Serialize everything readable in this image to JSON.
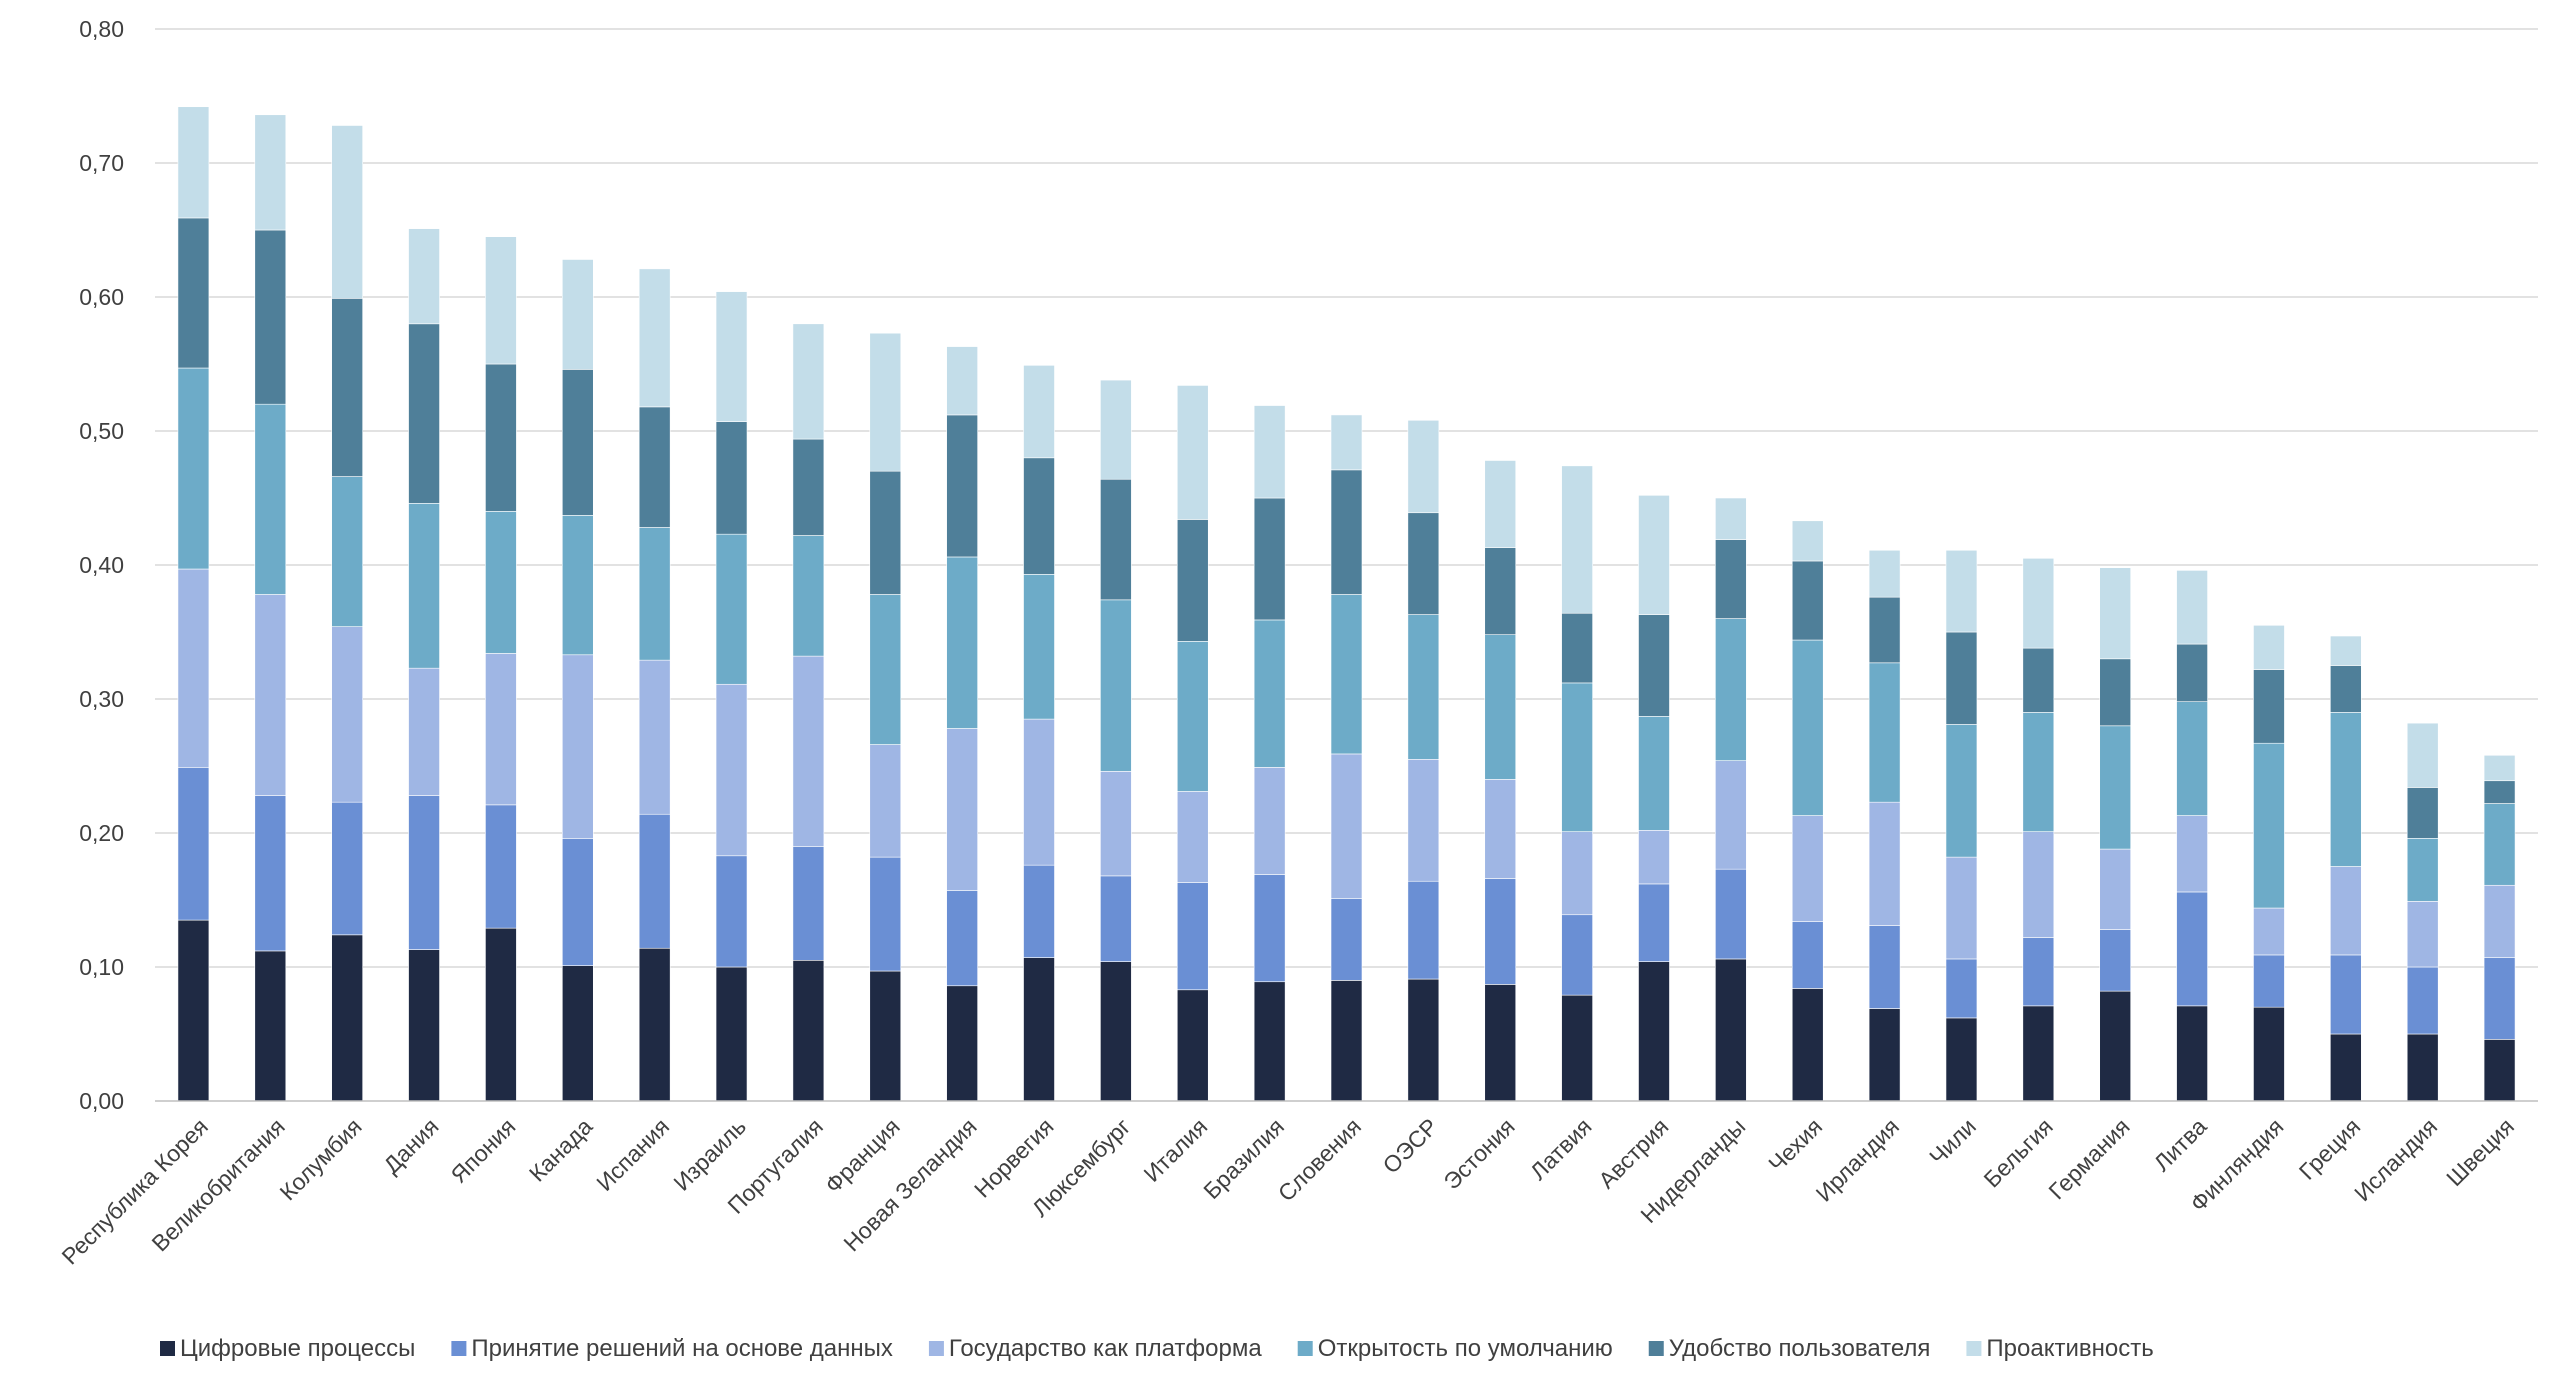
{
  "chart_data": {
    "type": "bar",
    "stacked": true,
    "title": "",
    "xlabel": "",
    "ylabel": "",
    "ylim": [
      0,
      0.8
    ],
    "yticks": [
      "0,00",
      "0,10",
      "0,20",
      "0,30",
      "0,40",
      "0,50",
      "0,60",
      "0,70",
      "0,80"
    ],
    "grid": true,
    "legend_position": "bottom",
    "categories": [
      "Республика Корея",
      "Великобритания",
      "Колумбия",
      "Дания",
      "Япония",
      "Канада",
      "Испания",
      "Израиль",
      "Португалия",
      "Франция",
      "Новая Зеландия",
      "Норвегия",
      "Люксембург",
      "Италия",
      "Бразилия",
      "Словения",
      "ОЭСР",
      "Эстония",
      "Латвия",
      "Австрия",
      "Нидерланды",
      "Чехия",
      "Ирландия",
      "Чили",
      "Бельгия",
      "Германия",
      "Литва",
      "Финляндия",
      "Греция",
      "Исландия",
      "Швеция"
    ],
    "series": [
      {
        "name": "Цифровые процессы",
        "color": "#1f2a44",
        "values": [
          0.135,
          0.112,
          0.124,
          0.113,
          0.129,
          0.101,
          0.114,
          0.1,
          0.105,
          0.097,
          0.086,
          0.107,
          0.104,
          0.083,
          0.089,
          0.09,
          0.091,
          0.087,
          0.079,
          0.104,
          0.106,
          0.084,
          0.069,
          0.062,
          0.071,
          0.082,
          0.071,
          0.07,
          0.05,
          0.05,
          0.046
        ]
      },
      {
        "name": "Принятие решений на основе данных",
        "color": "#6a8fd4",
        "values": [
          0.114,
          0.116,
          0.099,
          0.115,
          0.092,
          0.095,
          0.1,
          0.083,
          0.085,
          0.085,
          0.071,
          0.069,
          0.064,
          0.08,
          0.08,
          0.061,
          0.073,
          0.079,
          0.06,
          0.058,
          0.067,
          0.05,
          0.062,
          0.044,
          0.051,
          0.046,
          0.085,
          0.039,
          0.059,
          0.05,
          0.061
        ]
      },
      {
        "name": "Государство как платформа",
        "color": "#9fb6e4",
        "values": [
          0.148,
          0.15,
          0.131,
          0.095,
          0.113,
          0.137,
          0.115,
          0.128,
          0.142,
          0.084,
          0.121,
          0.109,
          0.078,
          0.068,
          0.08,
          0.108,
          0.091,
          0.074,
          0.062,
          0.04,
          0.081,
          0.079,
          0.092,
          0.076,
          0.079,
          0.06,
          0.057,
          0.035,
          0.066,
          0.049,
          0.054
        ]
      },
      {
        "name": "Открытость по умолчанию",
        "color": "#6dabc8",
        "values": [
          0.15,
          0.142,
          0.112,
          0.123,
          0.106,
          0.104,
          0.099,
          0.112,
          0.09,
          0.112,
          0.128,
          0.108,
          0.128,
          0.112,
          0.11,
          0.119,
          0.108,
          0.108,
          0.111,
          0.085,
          0.106,
          0.131,
          0.104,
          0.099,
          0.089,
          0.092,
          0.085,
          0.123,
          0.115,
          0.047,
          0.061
        ]
      },
      {
        "name": "Удобство пользователя",
        "color": "#4f7f99",
        "values": [
          0.112,
          0.13,
          0.133,
          0.134,
          0.11,
          0.109,
          0.09,
          0.084,
          0.072,
          0.092,
          0.106,
          0.087,
          0.09,
          0.091,
          0.091,
          0.093,
          0.076,
          0.065,
          0.052,
          0.076,
          0.059,
          0.059,
          0.049,
          0.069,
          0.048,
          0.05,
          0.043,
          0.055,
          0.035,
          0.038,
          0.017
        ]
      },
      {
        "name": "Проактивность",
        "color": "#c3dde9",
        "values": [
          0.083,
          0.086,
          0.129,
          0.071,
          0.095,
          0.082,
          0.103,
          0.097,
          0.086,
          0.103,
          0.051,
          0.069,
          0.074,
          0.1,
          0.069,
          0.041,
          0.069,
          0.065,
          0.11,
          0.089,
          0.031,
          0.03,
          0.035,
          0.061,
          0.067,
          0.068,
          0.055,
          0.033,
          0.022,
          0.048,
          0.019
        ]
      }
    ]
  }
}
